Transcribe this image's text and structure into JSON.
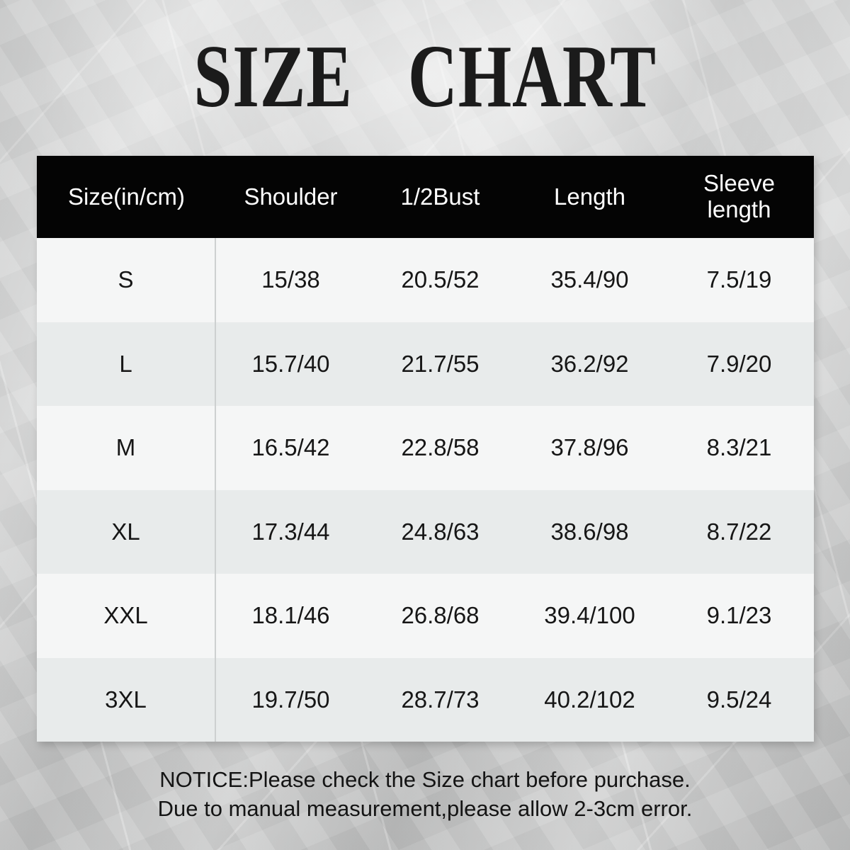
{
  "title": "SIZE CHART",
  "table": {
    "headers": [
      "Size(in/cm)",
      "Shoulder",
      "1/2Bust",
      "Length",
      "Sleeve length"
    ],
    "rows": [
      {
        "size": "S",
        "shoulder": "15/38",
        "half_bust": "20.5/52",
        "length": "35.4/90",
        "sleeve_length": "7.5/19"
      },
      {
        "size": "L",
        "shoulder": "15.7/40",
        "half_bust": "21.7/55",
        "length": "36.2/92",
        "sleeve_length": "7.9/20"
      },
      {
        "size": "M",
        "shoulder": "16.5/42",
        "half_bust": "22.8/58",
        "length": "37.8/96",
        "sleeve_length": "8.3/21"
      },
      {
        "size": "XL",
        "shoulder": "17.3/44",
        "half_bust": "24.8/63",
        "length": "38.6/98",
        "sleeve_length": "8.7/22"
      },
      {
        "size": "XXL",
        "shoulder": "18.1/46",
        "half_bust": "26.8/68",
        "length": "39.4/100",
        "sleeve_length": "9.1/23"
      },
      {
        "size": "3XL",
        "shoulder": "19.7/50",
        "half_bust": "28.7/73",
        "length": "40.2/102",
        "sleeve_length": "9.5/24"
      }
    ]
  },
  "notice": {
    "line1": "NOTICE:Please check the Size chart before purchase.",
    "line2": "Due to manual measurement,please allow 2-3cm error."
  },
  "colors": {
    "header_bg": "#040404",
    "header_text": "#ffffff",
    "row_light": "#f5f6f6",
    "row_dark": "#e8ebeb",
    "column_divider": "#cdd0d0",
    "background_base": "#d3d4d4",
    "text": "#161616"
  }
}
